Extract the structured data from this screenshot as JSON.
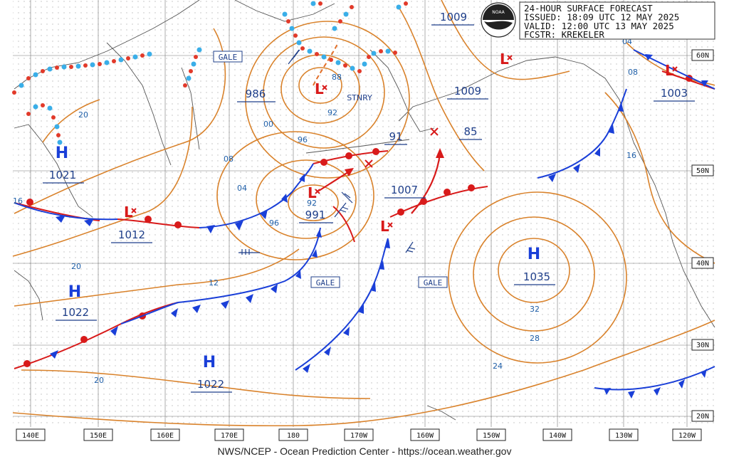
{
  "header": {
    "lines": [
      "24-HOUR SURFACE FORECAST",
      "ISSUED: 18:09 UTC 12 MAY 2025",
      "VALID:  12:00 UTC 13 MAY 2025",
      "FCSTR:  KREKELER"
    ],
    "logo_text": "NOAA",
    "top_pressure_label": "1009"
  },
  "credit": "NWS/NCEP - Ocean Prediction Center - https://ocean.weather.gov",
  "axis": {
    "longitudes": [
      "140E",
      "150E",
      "160E",
      "170E",
      "180",
      "170W",
      "160W",
      "150W",
      "140W",
      "130W",
      "120W"
    ],
    "latitudes": [
      "60N",
      "50N",
      "40N",
      "30N",
      "20N"
    ]
  },
  "centers": {
    "high_nw": {
      "symbol": "H",
      "value": "1021"
    },
    "high_w": {
      "symbol": "H",
      "value": "1022"
    },
    "high_sw": {
      "symbol": "H",
      "value": "1022"
    },
    "high_e": {
      "symbol": "H",
      "value": "1035"
    },
    "low_bering": {
      "value": "986",
      "note": "STNRY"
    },
    "low_kam": {
      "value": "1012"
    },
    "low_main": {
      "value": "991"
    },
    "low_aleut": {
      "value": "1007"
    },
    "low_gulf": {
      "value": "1009"
    },
    "low_ne": {
      "value": "1003"
    },
    "low_mid_value": "91",
    "low_mid2_value": "85"
  },
  "gale_labels": [
    "GALE",
    "GALE",
    "GALE"
  ],
  "isobar_labels": [
    "20",
    "00",
    "92",
    "96",
    "88",
    "08",
    "04",
    "96",
    "92",
    "12",
    "20",
    "16",
    "20",
    "32",
    "28",
    "24",
    "16",
    "08",
    "04"
  ],
  "colors": {
    "cold": "#1a3fd8",
    "warm": "#d81a1a",
    "isobar": "#d9822b",
    "stationary_red": "#e23a2a",
    "stationary_blue": "#3aaee8",
    "label": "#1f3f8a"
  }
}
